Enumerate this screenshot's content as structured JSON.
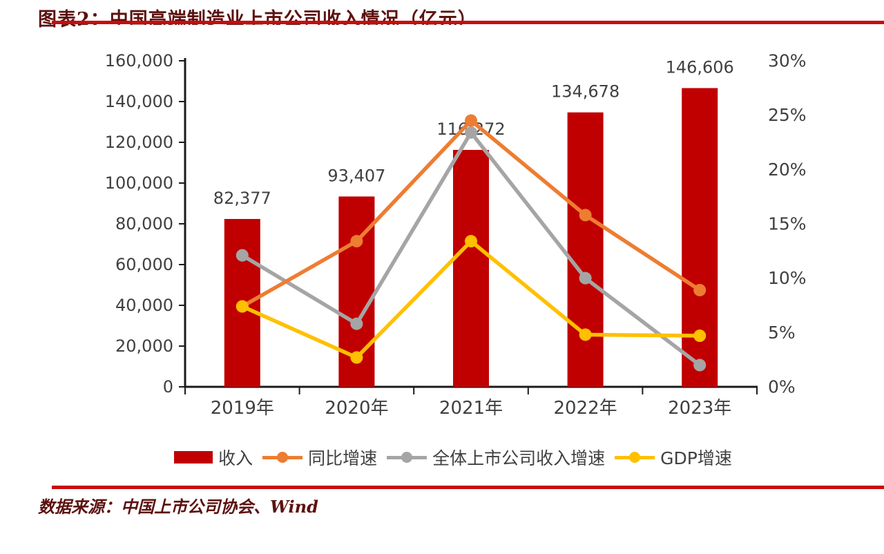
{
  "header": {
    "title": "图表2：中国高端制造业上市公司收入情况（亿元）"
  },
  "footer": {
    "source": "数据来源：中国上市公司协会、Wind"
  },
  "colors": {
    "bar_red": "#c00000",
    "orange": "#ed7d31",
    "gray": "#a5a5a5",
    "yellow": "#ffc000",
    "axis_line": "#1a1a1a",
    "chart_text": "#404040",
    "rule_red": "#c80c0c",
    "title_red": "#5c1210"
  },
  "chart_data": {
    "type": "bar",
    "subtype": "bar+line combo, dual axis",
    "categories": [
      "2019年",
      "2020年",
      "2021年",
      "2022年",
      "2023年"
    ],
    "bar_series": {
      "name": "收入",
      "color": "#c00000",
      "values": [
        82377,
        93407,
        116272,
        134678,
        146606
      ],
      "labels": [
        "82,377",
        "93,407",
        "116,272",
        "134,678",
        "146,606"
      ]
    },
    "line_series": [
      {
        "name": "同比增速",
        "color": "#ed7d31",
        "values_pct": [
          7.4,
          13.4,
          24.5,
          15.8,
          8.9
        ]
      },
      {
        "name": "全体上市公司收入增速",
        "color": "#a5a5a5",
        "values_pct": [
          12.1,
          5.8,
          23.4,
          10.0,
          2.0
        ]
      },
      {
        "name": "GDP增速",
        "color": "#ffc000",
        "values_pct": [
          7.4,
          2.7,
          13.4,
          4.8,
          4.7
        ]
      }
    ],
    "left_axis": {
      "min": 0,
      "max": 160000,
      "step": 20000,
      "tick_labels": [
        "0",
        "20,000",
        "40,000",
        "60,000",
        "80,000",
        "100,000",
        "120,000",
        "140,000",
        "160,000"
      ]
    },
    "right_axis": {
      "min_pct": 0,
      "max_pct": 30,
      "step_pct": 5,
      "tick_labels": [
        "0%",
        "5%",
        "10%",
        "15%",
        "20%",
        "25%",
        "30%"
      ]
    },
    "grid": false,
    "legend_position": "bottom"
  }
}
